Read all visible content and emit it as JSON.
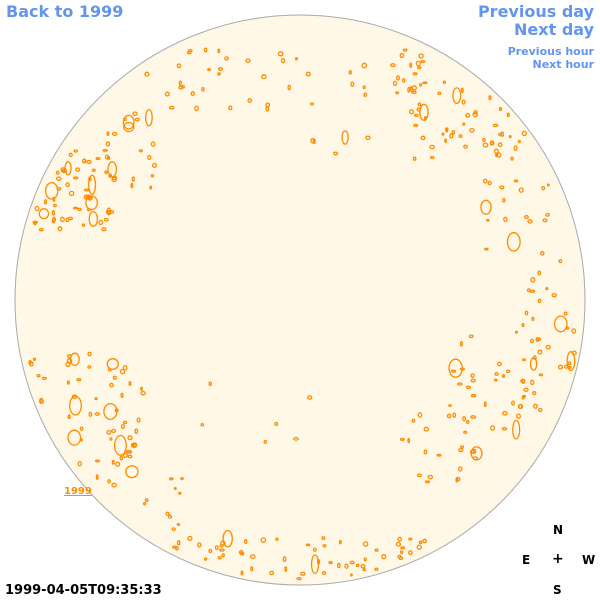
{
  "nav": {
    "back_label": "Back to 1999",
    "prev_day_label": "Previous day",
    "next_day_label": "Next day",
    "prev_hour_label": "Previous hour",
    "next_hour_label": "Next hour"
  },
  "compass": {
    "north": "N",
    "east": "E",
    "center": "+",
    "west": "W",
    "south": "S"
  },
  "timestamp": "1999-04-05T09:35:33",
  "year_label": "1999",
  "colors": {
    "disk_fill": "#fff8e7",
    "disk_outline": "#aaaaaa",
    "contour": "#ff8c00",
    "link": "#6495ed"
  }
}
